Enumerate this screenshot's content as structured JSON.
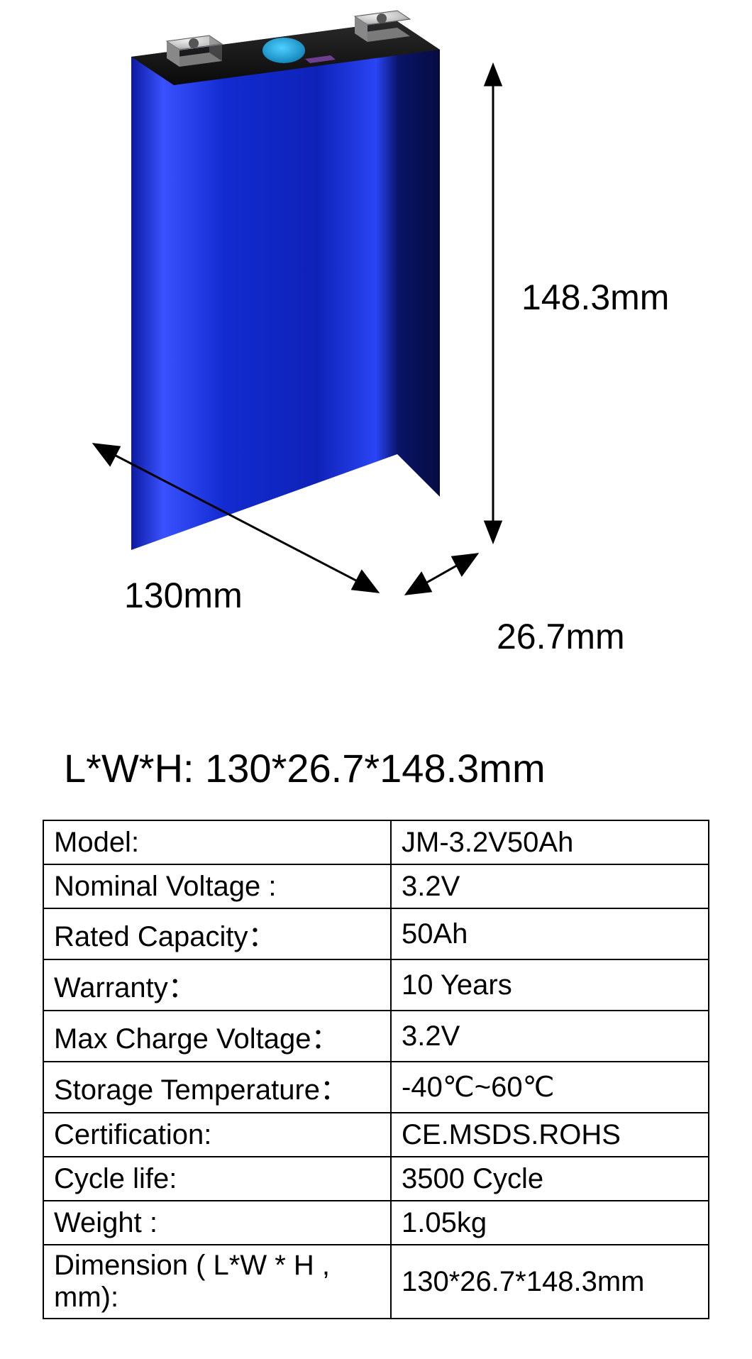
{
  "diagram": {
    "length_label": "130mm",
    "width_label": "26.7mm",
    "height_label": "148.3mm",
    "colors": {
      "battery_front": "#1a2fd6",
      "battery_front_dark": "#0f1fa8",
      "battery_side": "#0a1670",
      "battery_top": "#1a1a1a",
      "terminal_body": "#cfcfcf",
      "terminal_top": "#b8b8b8",
      "indicator_blue": "#17a6e6",
      "indicator_dark": "#0a7ab0",
      "label_bg": "#6f3f8f",
      "arrow_color": "#000000"
    }
  },
  "summary": "L*W*H:  130*26.7*148.3mm",
  "specs": [
    {
      "key": "Model:",
      "val": "JM-3.2V50Ah"
    },
    {
      "key": "Nominal Voltage :",
      "val": "3.2V"
    },
    {
      "key": "Rated Capacity：",
      "val": "50Ah"
    },
    {
      "key": "Warranty：",
      "val": "10 Years"
    },
    {
      "key": "Max Charge Voltage：",
      "val": "3.2V"
    },
    {
      "key": "Storage Temperature：",
      "val": "-40℃~60℃"
    },
    {
      "key": "Certification:",
      "val": "CE.MSDS.ROHS"
    },
    {
      "key": "Cycle life:",
      "val": "3500 Cycle"
    },
    {
      "key": "Weight :",
      "val": "1.05kg"
    },
    {
      "key": "Dimension ( L*W * H , mm):",
      "val": "130*26.7*148.3mm"
    }
  ]
}
